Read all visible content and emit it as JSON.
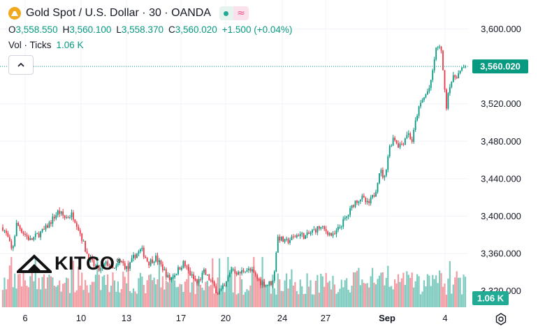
{
  "header": {
    "title": "Gold Spot / U.S. Dollar · 30 · OANDA",
    "ohlc": {
      "open_key": "O",
      "open": "3,558.550",
      "high_key": "H",
      "high": "3,560.100",
      "low_key": "L",
      "low": "3,558.370",
      "close_key": "C",
      "close": "3,560.020",
      "change": "+1.500 (+0.04%)"
    },
    "volume_label": "Vol · Ticks",
    "volume_value": "1.06 K",
    "collapse_icon": "chevron-up-icon"
  },
  "watermark": {
    "text": "KITCO",
    "mark": "®"
  },
  "colors": {
    "up": "#089981",
    "down": "#f23645",
    "vol_up": "#7fcbbf",
    "vol_down": "#f49ca3",
    "grid": "#f0f3fa",
    "axis_text": "#131722",
    "price_line": "#089981",
    "logo": "#f0a81f"
  },
  "chart_data": {
    "type": "candlestick",
    "interval": "30 minutes",
    "symbol": "Gold Spot / U.S. Dollar",
    "source": "OANDA",
    "ylim": [
      3300,
      3606
    ],
    "y_ticks": [
      "3,320.000",
      "3,360.000",
      "3,400.000",
      "3,440.000",
      "3,480.000",
      "3,520.000",
      "3,560.000",
      "3,600.000"
    ],
    "x_ticks": [
      "6",
      "10",
      "13",
      "17",
      "20",
      "24",
      "27",
      "Sep",
      "4"
    ],
    "last_price_label": "3,560.020",
    "last_price": 3560.02,
    "last_volume_label": "1.06 K",
    "grid": true,
    "price_path": [
      [
        0,
        3388
      ],
      [
        0.01,
        3378
      ],
      [
        0.02,
        3362
      ],
      [
        0.03,
        3392
      ],
      [
        0.045,
        3382
      ],
      [
        0.06,
        3374
      ],
      [
        0.075,
        3380
      ],
      [
        0.09,
        3385
      ],
      [
        0.105,
        3395
      ],
      [
        0.12,
        3405
      ],
      [
        0.135,
        3398
      ],
      [
        0.15,
        3402
      ],
      [
        0.16,
        3392
      ],
      [
        0.17,
        3378
      ],
      [
        0.18,
        3362
      ],
      [
        0.195,
        3348
      ],
      [
        0.21,
        3342
      ],
      [
        0.225,
        3350
      ],
      [
        0.24,
        3342
      ],
      [
        0.255,
        3352
      ],
      [
        0.27,
        3343
      ],
      [
        0.285,
        3358
      ],
      [
        0.3,
        3364
      ],
      [
        0.315,
        3350
      ],
      [
        0.33,
        3356
      ],
      [
        0.345,
        3345
      ],
      [
        0.36,
        3332
      ],
      [
        0.375,
        3340
      ],
      [
        0.39,
        3350
      ],
      [
        0.405,
        3338
      ],
      [
        0.42,
        3328
      ],
      [
        0.435,
        3340
      ],
      [
        0.45,
        3330
      ],
      [
        0.465,
        3318
      ],
      [
        0.48,
        3324
      ],
      [
        0.495,
        3345
      ],
      [
        0.51,
        3338
      ],
      [
        0.525,
        3344
      ],
      [
        0.54,
        3340
      ],
      [
        0.555,
        3330
      ],
      [
        0.57,
        3327
      ],
      [
        0.585,
        3330
      ],
      [
        0.59,
        3358
      ],
      [
        0.595,
        3378
      ],
      [
        0.61,
        3372
      ],
      [
        0.625,
        3376
      ],
      [
        0.64,
        3381
      ],
      [
        0.655,
        3378
      ],
      [
        0.67,
        3384
      ],
      [
        0.685,
        3388
      ],
      [
        0.7,
        3384
      ],
      [
        0.715,
        3378
      ],
      [
        0.73,
        3390
      ],
      [
        0.745,
        3400
      ],
      [
        0.76,
        3415
      ],
      [
        0.775,
        3420
      ],
      [
        0.79,
        3412
      ],
      [
        0.805,
        3425
      ],
      [
        0.815,
        3450
      ],
      [
        0.825,
        3440
      ],
      [
        0.835,
        3472
      ],
      [
        0.845,
        3485
      ],
      [
        0.855,
        3476
      ],
      [
        0.865,
        3478
      ],
      [
        0.875,
        3490
      ],
      [
        0.885,
        3480
      ],
      [
        0.895,
        3508
      ],
      [
        0.905,
        3522
      ],
      [
        0.915,
        3530
      ],
      [
        0.925,
        3540
      ],
      [
        0.935,
        3575
      ],
      [
        0.942,
        3584
      ],
      [
        0.95,
        3570
      ],
      [
        0.958,
        3514
      ],
      [
        0.965,
        3540
      ],
      [
        0.975,
        3548
      ],
      [
        0.985,
        3552
      ],
      [
        1,
        3560
      ]
    ]
  }
}
